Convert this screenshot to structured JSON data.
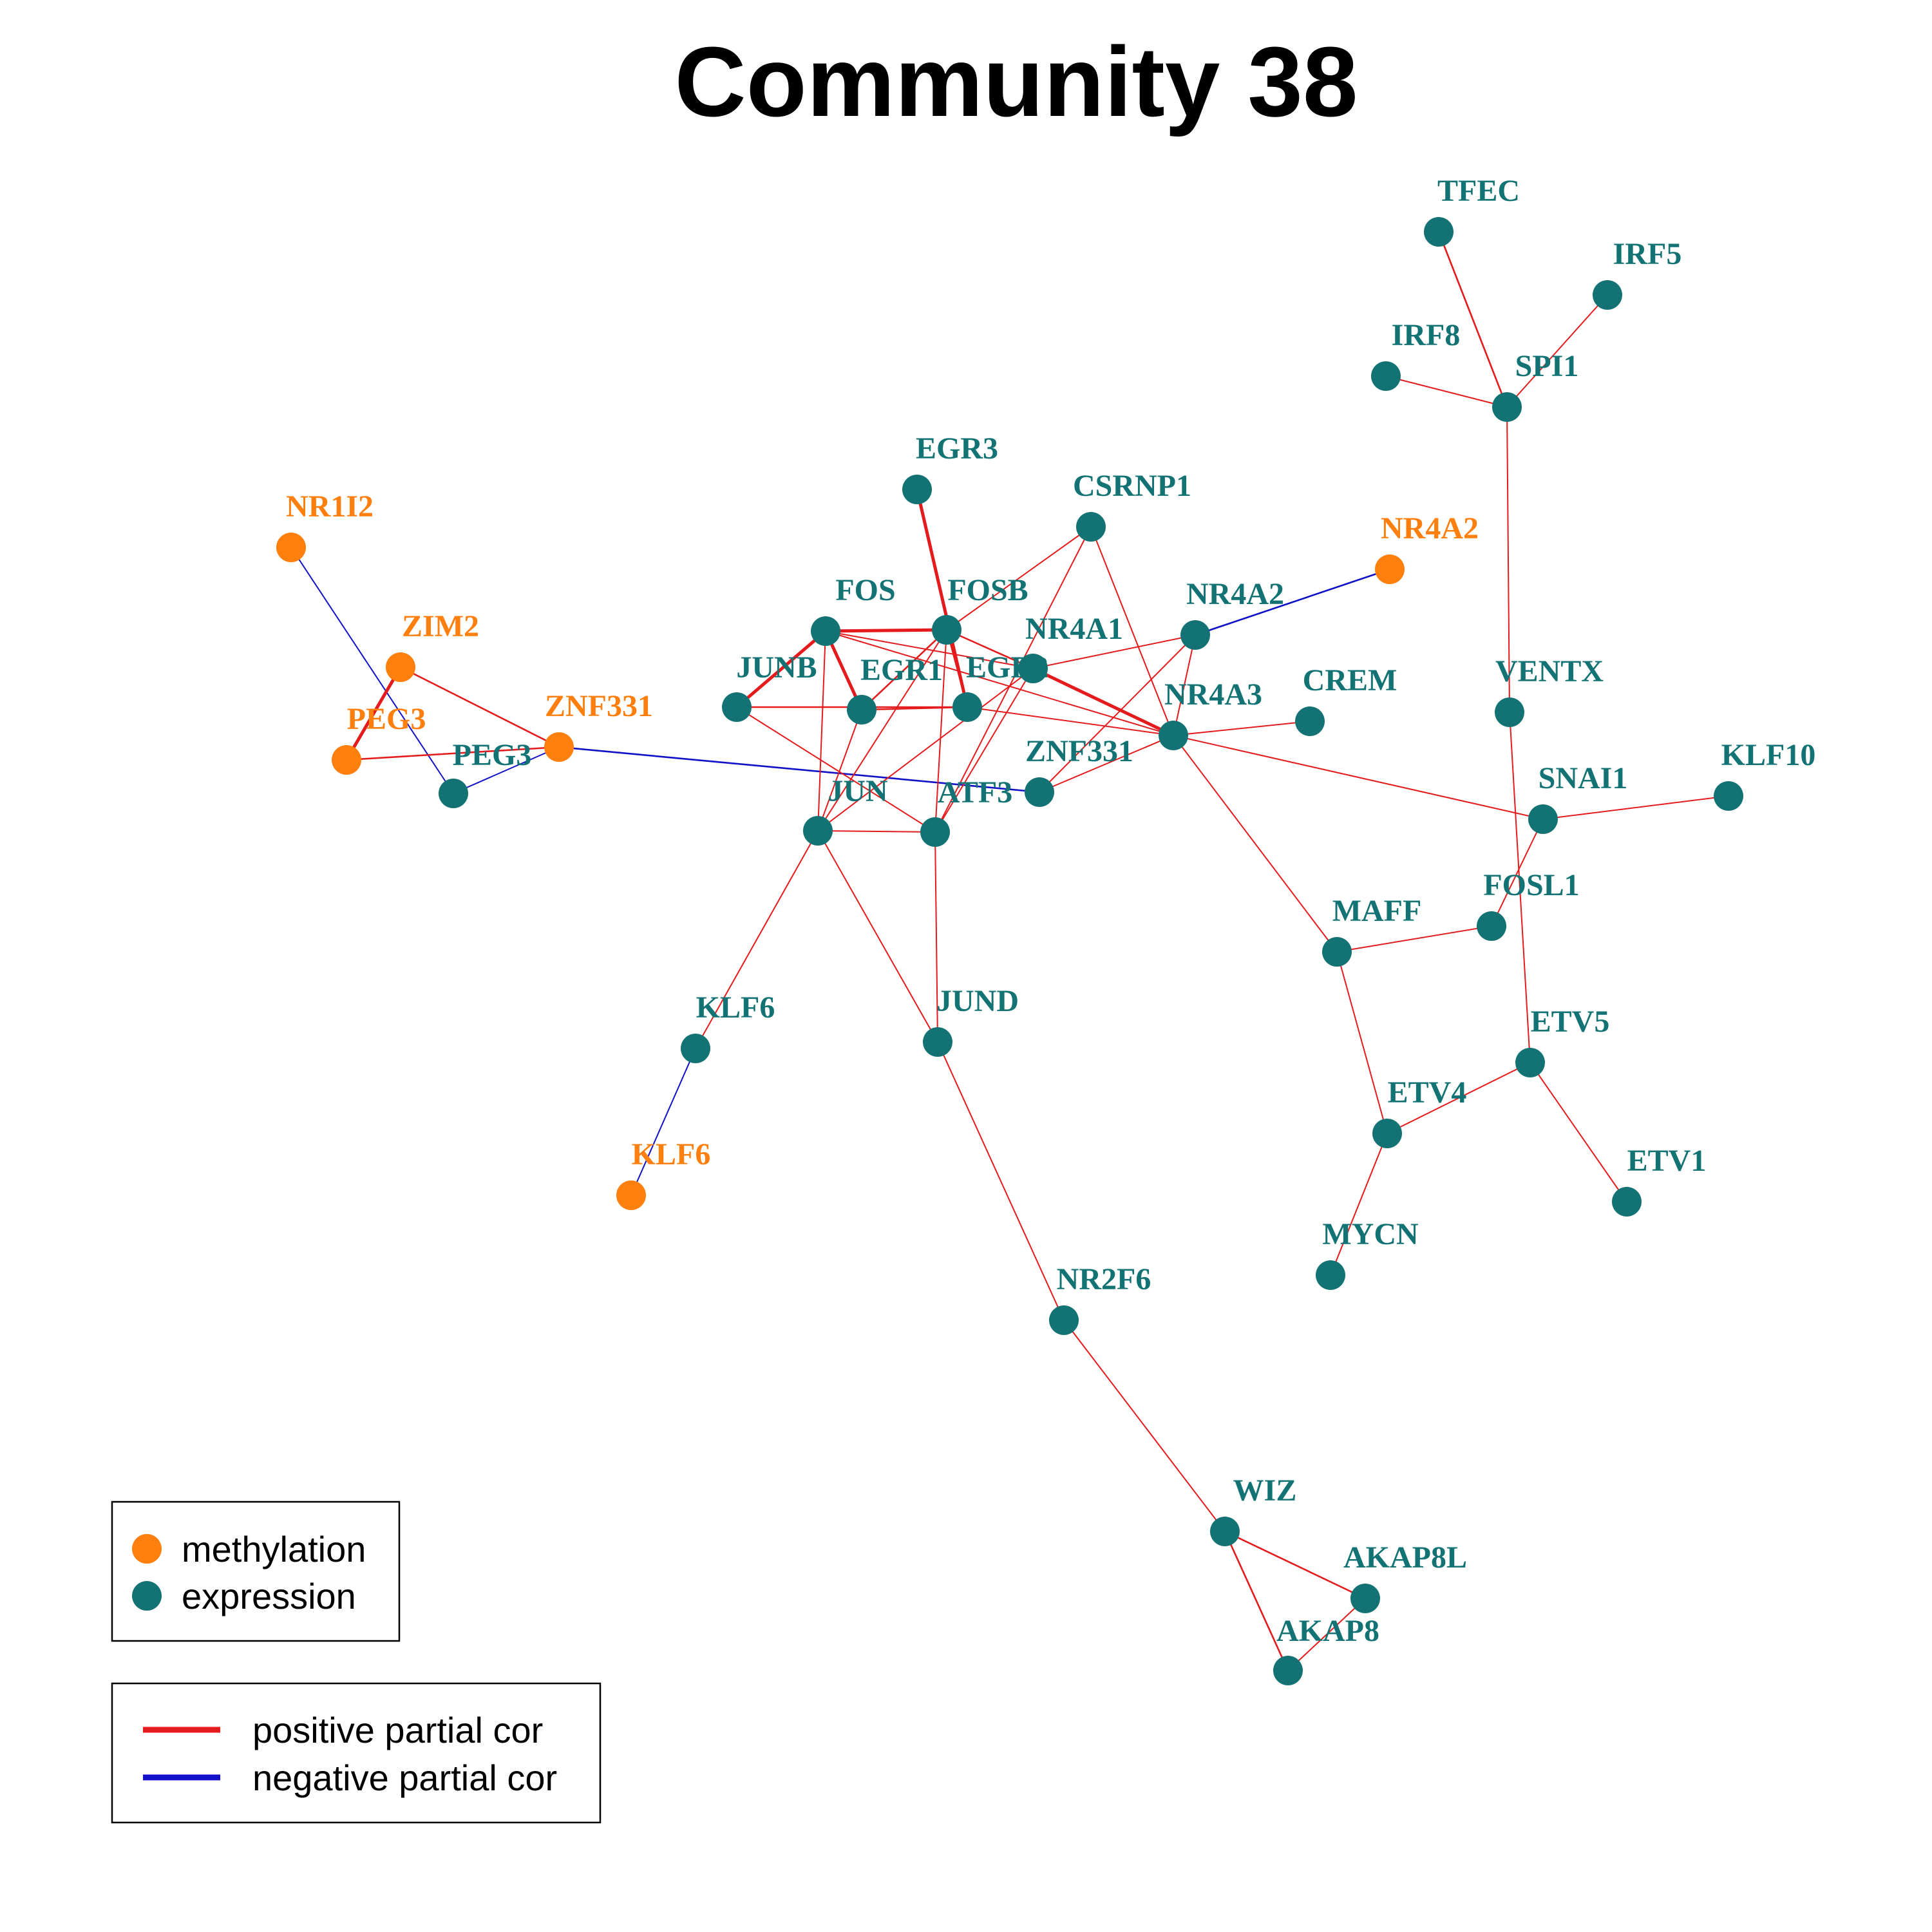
{
  "title": "Community 38",
  "colors": {
    "methylation": "#FF7F0E",
    "expression": "#137374",
    "positive": "#E41A1C",
    "negative": "#1010C8"
  },
  "legend_nodes": {
    "methylation": "methylation",
    "expression": "expression"
  },
  "legend_edges": {
    "positive": "positive partial cor",
    "negative": "negative partial cor"
  },
  "nodes": [
    {
      "id": "m_NR1I2",
      "label": "NR1I2",
      "type": "methylation"
    },
    {
      "id": "m_ZIM2",
      "label": "ZIM2",
      "type": "methylation"
    },
    {
      "id": "m_PEG3",
      "label": "PEG3",
      "type": "methylation"
    },
    {
      "id": "m_ZNF331",
      "label": "ZNF331",
      "type": "methylation"
    },
    {
      "id": "m_NR4A2",
      "label": "NR4A2",
      "type": "methylation"
    },
    {
      "id": "m_KLF6",
      "label": "KLF6",
      "type": "methylation"
    },
    {
      "id": "e_PEG3",
      "label": "PEG3",
      "type": "expression"
    },
    {
      "id": "e_EGR3",
      "label": "EGR3",
      "type": "expression"
    },
    {
      "id": "e_CSRNP1",
      "label": "CSRNP1",
      "type": "expression"
    },
    {
      "id": "e_FOS",
      "label": "FOS",
      "type": "expression"
    },
    {
      "id": "e_FOSB",
      "label": "FOSB",
      "type": "expression"
    },
    {
      "id": "e_NR4A1",
      "label": "NR4A1",
      "type": "expression"
    },
    {
      "id": "e_NR4A2",
      "label": "NR4A2",
      "type": "expression"
    },
    {
      "id": "e_JUNB",
      "label": "JUNB",
      "type": "expression"
    },
    {
      "id": "e_EGR1",
      "label": "EGR1",
      "type": "expression"
    },
    {
      "id": "e_EGR2",
      "label": "EGR2",
      "type": "expression"
    },
    {
      "id": "e_NR4A3",
      "label": "NR4A3",
      "type": "expression"
    },
    {
      "id": "e_CREM",
      "label": "CREM",
      "type": "expression"
    },
    {
      "id": "e_ZNF331",
      "label": "ZNF331",
      "type": "expression"
    },
    {
      "id": "e_JUN",
      "label": "JUN",
      "type": "expression"
    },
    {
      "id": "e_ATF3",
      "label": "ATF3",
      "type": "expression"
    },
    {
      "id": "e_JUND",
      "label": "JUND",
      "type": "expression"
    },
    {
      "id": "e_KLF6",
      "label": "KLF6",
      "type": "expression"
    },
    {
      "id": "e_NR2F6",
      "label": "NR2F6",
      "type": "expression"
    },
    {
      "id": "e_WIZ",
      "label": "WIZ",
      "type": "expression"
    },
    {
      "id": "e_AKAP8L",
      "label": "AKAP8L",
      "type": "expression"
    },
    {
      "id": "e_AKAP8",
      "label": "AKAP8",
      "type": "expression"
    },
    {
      "id": "e_TFEC",
      "label": "TFEC",
      "type": "expression"
    },
    {
      "id": "e_IRF5",
      "label": "IRF5",
      "type": "expression"
    },
    {
      "id": "e_IRF8",
      "label": "IRF8",
      "type": "expression"
    },
    {
      "id": "e_SPI1",
      "label": "SPI1",
      "type": "expression"
    },
    {
      "id": "e_VENTX",
      "label": "VENTX",
      "type": "expression"
    },
    {
      "id": "e_SNAI1",
      "label": "SNAI1",
      "type": "expression"
    },
    {
      "id": "e_KLF10",
      "label": "KLF10",
      "type": "expression"
    },
    {
      "id": "e_FOSL1",
      "label": "FOSL1",
      "type": "expression"
    },
    {
      "id": "e_MAFF",
      "label": "MAFF",
      "type": "expression"
    },
    {
      "id": "e_ETV5",
      "label": "ETV5",
      "type": "expression"
    },
    {
      "id": "e_ETV4",
      "label": "ETV4",
      "type": "expression"
    },
    {
      "id": "e_ETV1",
      "label": "ETV1",
      "type": "expression"
    },
    {
      "id": "e_MYCN",
      "label": "MYCN",
      "type": "expression"
    }
  ],
  "edges": [
    {
      "source": "m_NR1I2",
      "target": "e_PEG3",
      "sign": "negative",
      "strength": "weak"
    },
    {
      "source": "m_ZIM2",
      "target": "m_PEG3",
      "sign": "positive",
      "strength": "strong"
    },
    {
      "source": "m_ZIM2",
      "target": "m_ZNF331",
      "sign": "positive",
      "strength": "medium"
    },
    {
      "source": "m_PEG3",
      "target": "m_ZNF331",
      "sign": "positive",
      "strength": "medium"
    },
    {
      "source": "e_PEG3",
      "target": "m_ZNF331",
      "sign": "negative",
      "strength": "weak"
    },
    {
      "source": "m_ZNF331",
      "target": "e_ZNF331",
      "sign": "negative",
      "strength": "medium"
    },
    {
      "source": "m_NR4A2",
      "target": "e_NR4A2",
      "sign": "negative",
      "strength": "medium"
    },
    {
      "source": "m_KLF6",
      "target": "e_KLF6",
      "sign": "negative",
      "strength": "weak"
    },
    {
      "source": "e_EGR3",
      "target": "e_EGR2",
      "sign": "positive",
      "strength": "strong"
    },
    {
      "source": "e_CSRNP1",
      "target": "e_ATF3",
      "sign": "positive",
      "strength": "weak"
    },
    {
      "source": "e_CSRNP1",
      "target": "e_NR4A3",
      "sign": "positive",
      "strength": "weak"
    },
    {
      "source": "e_FOS",
      "target": "e_FOSB",
      "sign": "positive",
      "strength": "strong"
    },
    {
      "source": "e_FOS",
      "target": "e_JUNB",
      "sign": "positive",
      "strength": "strong"
    },
    {
      "source": "e_FOS",
      "target": "e_EGR1",
      "sign": "positive",
      "strength": "strong"
    },
    {
      "source": "e_FOS",
      "target": "e_JUN",
      "sign": "positive",
      "strength": "weak"
    },
    {
      "source": "e_FOS",
      "target": "e_NR4A1",
      "sign": "positive",
      "strength": "weak"
    },
    {
      "source": "e_FOS",
      "target": "e_NR4A3",
      "sign": "positive",
      "strength": "weak"
    },
    {
      "source": "e_FOSB",
      "target": "e_EGR1",
      "sign": "positive",
      "strength": "medium"
    },
    {
      "source": "e_FOSB",
      "target": "e_NR4A1",
      "sign": "positive",
      "strength": "medium"
    },
    {
      "source": "e_FOSB",
      "target": "e_EGR2",
      "sign": "positive",
      "strength": "weak"
    },
    {
      "source": "e_FOSB",
      "target": "e_JUN",
      "sign": "positive",
      "strength": "weak"
    },
    {
      "source": "e_FOSB",
      "target": "e_ATF3",
      "sign": "positive",
      "strength": "weak"
    },
    {
      "source": "e_FOSB",
      "target": "e_CSRNP1",
      "sign": "positive",
      "strength": "weak"
    },
    {
      "source": "e_NR4A1",
      "target": "e_NR4A3",
      "sign": "positive",
      "strength": "strong"
    },
    {
      "source": "e_NR4A1",
      "target": "e_JUN",
      "sign": "positive",
      "strength": "weak"
    },
    {
      "source": "e_NR4A1",
      "target": "e_ATF3",
      "sign": "positive",
      "strength": "weak"
    },
    {
      "source": "e_NR4A2",
      "target": "e_NR4A1",
      "sign": "positive",
      "strength": "weak"
    },
    {
      "source": "e_NR4A2",
      "target": "e_NR4A3",
      "sign": "positive",
      "strength": "weak"
    },
    {
      "source": "e_NR4A2",
      "target": "e_ZNF331",
      "sign": "positive",
      "strength": "weak"
    },
    {
      "source": "e_JUNB",
      "target": "e_EGR2",
      "sign": "positive",
      "strength": "medium"
    },
    {
      "source": "e_JUNB",
      "target": "e_ATF3",
      "sign": "positive",
      "strength": "weak"
    },
    {
      "source": "e_EGR1",
      "target": "e_EGR2",
      "sign": "positive",
      "strength": "medium"
    },
    {
      "source": "e_EGR1",
      "target": "e_JUN",
      "sign": "positive",
      "strength": "weak"
    },
    {
      "source": "e_EGR2",
      "target": "e_NR4A3",
      "sign": "positive",
      "strength": "weak"
    },
    {
      "source": "e_NR4A3",
      "target": "e_CREM",
      "sign": "positive",
      "strength": "weak"
    },
    {
      "source": "e_NR4A3",
      "target": "e_ZNF331",
      "sign": "positive",
      "strength": "weak"
    },
    {
      "source": "e_NR4A3",
      "target": "e_SNAI1",
      "sign": "positive",
      "strength": "weak"
    },
    {
      "source": "e_NR4A3",
      "target": "e_MAFF",
      "sign": "positive",
      "strength": "weak"
    },
    {
      "source": "e_JUN",
      "target": "e_ATF3",
      "sign": "positive",
      "strength": "weak"
    },
    {
      "source": "e_JUN",
      "target": "e_KLF6",
      "sign": "positive",
      "strength": "weak"
    },
    {
      "source": "e_JUN",
      "target": "e_JUND",
      "sign": "positive",
      "strength": "weak"
    },
    {
      "source": "e_ATF3",
      "target": "e_JUND",
      "sign": "positive",
      "strength": "weak"
    },
    {
      "source": "e_JUND",
      "target": "e_NR2F6",
      "sign": "positive",
      "strength": "weak"
    },
    {
      "source": "e_NR2F6",
      "target": "e_WIZ",
      "sign": "positive",
      "strength": "weak"
    },
    {
      "source": "e_WIZ",
      "target": "e_AKAP8L",
      "sign": "positive",
      "strength": "medium"
    },
    {
      "source": "e_WIZ",
      "target": "e_AKAP8",
      "sign": "positive",
      "strength": "medium"
    },
    {
      "source": "e_AKAP8L",
      "target": "e_AKAP8",
      "sign": "positive",
      "strength": "weak"
    },
    {
      "source": "e_TFEC",
      "target": "e_SPI1",
      "sign": "positive",
      "strength": "medium"
    },
    {
      "source": "e_IRF5",
      "target": "e_SPI1",
      "sign": "positive",
      "strength": "weak"
    },
    {
      "source": "e_IRF8",
      "target": "e_SPI1",
      "sign": "positive",
      "strength": "weak"
    },
    {
      "source": "e_SPI1",
      "target": "e_VENTX",
      "sign": "positive",
      "strength": "weak"
    },
    {
      "source": "e_VENTX",
      "target": "e_ETV5",
      "sign": "positive",
      "strength": "weak"
    },
    {
      "source": "e_SNAI1",
      "target": "e_KLF10",
      "sign": "positive",
      "strength": "weak"
    },
    {
      "source": "e_SNAI1",
      "target": "e_FOSL1",
      "sign": "positive",
      "strength": "weak"
    },
    {
      "source": "e_FOSL1",
      "target": "e_MAFF",
      "sign": "positive",
      "strength": "weak"
    },
    {
      "source": "e_MAFF",
      "target": "e_ETV4",
      "sign": "positive",
      "strength": "weak"
    },
    {
      "source": "e_ETV5",
      "target": "e_ETV4",
      "sign": "positive",
      "strength": "weak"
    },
    {
      "source": "e_ETV5",
      "target": "e_ETV1",
      "sign": "positive",
      "strength": "weak"
    },
    {
      "source": "e_ETV4",
      "target": "e_MYCN",
      "sign": "positive",
      "strength": "weak"
    }
  ]
}
